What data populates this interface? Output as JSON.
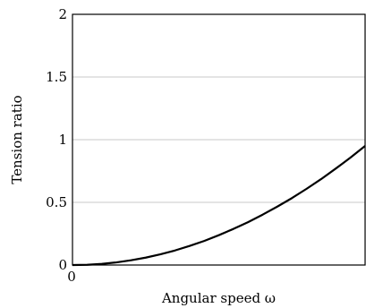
{
  "chart_data": {
    "type": "line",
    "xlabel": "Angular speed ω",
    "ylabel": "Tension ratio",
    "xlim": [
      0,
      1
    ],
    "ylim": [
      0,
      2
    ],
    "x_ticks": [
      "0"
    ],
    "y_ticks": [
      {
        "value": 0,
        "label": "0"
      },
      {
        "value": 0.5,
        "label": "0.5"
      },
      {
        "value": 1,
        "label": "1"
      },
      {
        "value": 1.5,
        "label": "1.5"
      },
      {
        "value": 2,
        "label": "2"
      }
    ],
    "grid": "horizontal",
    "series": [
      {
        "color": "#000000",
        "x": [
          0,
          0.05,
          0.1,
          0.15,
          0.2,
          0.25,
          0.3,
          0.35,
          0.4,
          0.45,
          0.5,
          0.55,
          0.6,
          0.65,
          0.7,
          0.75,
          0.8,
          0.85,
          0.9,
          0.95,
          1.0
        ],
        "y": [
          0,
          0.002,
          0.009,
          0.021,
          0.038,
          0.059,
          0.085,
          0.116,
          0.152,
          0.192,
          0.238,
          0.288,
          0.342,
          0.402,
          0.466,
          0.534,
          0.608,
          0.686,
          0.77,
          0.857,
          0.95
        ]
      }
    ]
  }
}
